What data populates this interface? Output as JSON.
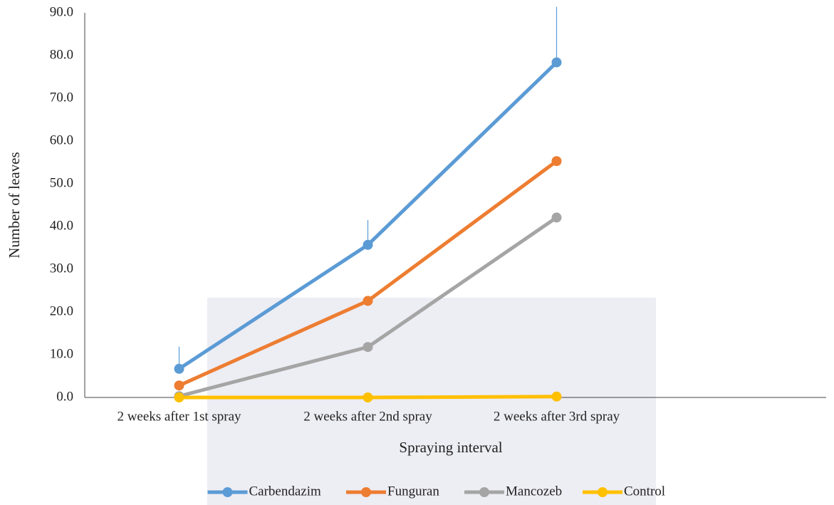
{
  "chart_data": {
    "type": "line",
    "x_label": "Spraying interval",
    "y_label": "Number of leaves",
    "categories": [
      "2 weeks after 1st spray",
      "2 weeks after 2nd spray",
      "2 weeks after 3rd spray"
    ],
    "series": [
      {
        "name": "Carbendazim",
        "color": "#5b9bd5",
        "values": [
          6.7,
          35.7,
          78.4
        ],
        "errors": [
          5.2,
          5.8,
          13
        ]
      },
      {
        "name": "Funguran",
        "color": "#ed7d31",
        "values": [
          2.8,
          22.6,
          55.3
        ]
      },
      {
        "name": "Mancozeb",
        "color": "#a5a5a5",
        "values": [
          0.3,
          11.8,
          42.1
        ]
      },
      {
        "name": "Control",
        "color": "#ffc000",
        "values": [
          0,
          0,
          0.2
        ]
      }
    ],
    "ylim": [
      0,
      90
    ],
    "yticks": [
      {
        "value": 0,
        "label": "0.0"
      },
      {
        "value": 10,
        "label": "10.0"
      },
      {
        "value": 20,
        "label": "20.0"
      },
      {
        "value": 30,
        "label": "30.0"
      },
      {
        "value": 40,
        "label": "40.0"
      },
      {
        "value": 50,
        "label": "50.0"
      },
      {
        "value": 60,
        "label": "60.0"
      },
      {
        "value": 70,
        "label": "70.0"
      },
      {
        "value": 80,
        "label": "80.0"
      },
      {
        "value": 90,
        "label": "90.0"
      }
    ],
    "legend": "bottom"
  }
}
